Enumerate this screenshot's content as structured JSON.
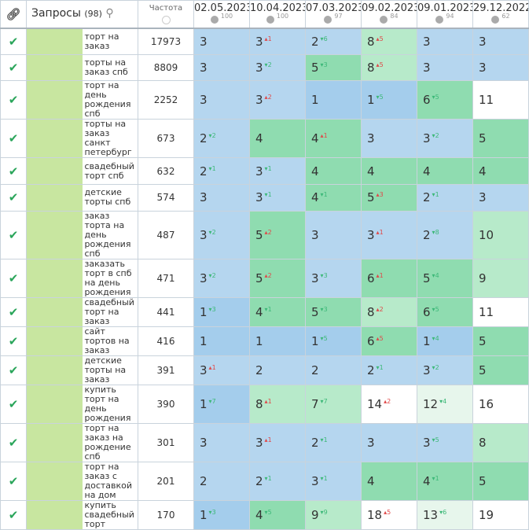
{
  "header": {
    "link_icon": "link-icon",
    "queries_label": "Запросы",
    "queries_count": "(98)",
    "freq_label": "Частота",
    "dates": [
      {
        "date": "02.05.2023",
        "pct": "100"
      },
      {
        "date": "10.04.2023",
        "pct": "100"
      },
      {
        "date": "07.03.2023",
        "pct": "97"
      },
      {
        "date": "09.02.2023",
        "pct": "84"
      },
      {
        "date": "09.01.2023",
        "pct": "94"
      },
      {
        "date": "29.12.2022",
        "pct": "62"
      }
    ]
  },
  "rows": [
    {
      "q": "торт на заказ",
      "f": "17973",
      "c": [
        [
          "3",
          "",
          "",
          "b"
        ],
        [
          "3",
          "1",
          "up",
          "b"
        ],
        [
          "2",
          "6",
          "dn",
          "b"
        ],
        [
          "8",
          "5",
          "up",
          "lg"
        ],
        [
          "3",
          "",
          "",
          "b"
        ],
        [
          "3",
          "",
          "",
          "b"
        ]
      ]
    },
    {
      "q": "торты на заказ спб",
      "f": "8809",
      "c": [
        [
          "3",
          "",
          "",
          "b"
        ],
        [
          "3",
          "2",
          "dn",
          "b"
        ],
        [
          "5",
          "3",
          "dn",
          "g"
        ],
        [
          "8",
          "5",
          "up",
          "lg"
        ],
        [
          "3",
          "",
          "",
          "b"
        ],
        [
          "3",
          "",
          "",
          "b"
        ]
      ]
    },
    {
      "q": "торт на день рождения спб",
      "f": "2252",
      "c": [
        [
          "3",
          "",
          "",
          "b"
        ],
        [
          "3",
          "2",
          "up",
          "b"
        ],
        [
          "1",
          "",
          "",
          "db"
        ],
        [
          "1",
          "5",
          "dn",
          "db"
        ],
        [
          "6",
          "5",
          "dn",
          "g"
        ],
        [
          "11",
          "",
          "",
          "w"
        ]
      ]
    },
    {
      "q": "торты на заказ санкт петербург",
      "f": "673",
      "c": [
        [
          "2",
          "2",
          "dn",
          "b"
        ],
        [
          "4",
          "",
          "",
          "g"
        ],
        [
          "4",
          "1",
          "up",
          "g"
        ],
        [
          "3",
          "",
          "",
          "b"
        ],
        [
          "3",
          "2",
          "dn",
          "b"
        ],
        [
          "5",
          "",
          "",
          "g"
        ]
      ]
    },
    {
      "q": "свадебный торт спб",
      "f": "632",
      "c": [
        [
          "2",
          "1",
          "dn",
          "b"
        ],
        [
          "3",
          "1",
          "dn",
          "b"
        ],
        [
          "4",
          "",
          "",
          "g"
        ],
        [
          "4",
          "",
          "",
          "g"
        ],
        [
          "4",
          "",
          "",
          "g"
        ],
        [
          "4",
          "",
          "",
          "g"
        ]
      ]
    },
    {
      "q": "детские торты спб",
      "f": "574",
      "c": [
        [
          "3",
          "",
          "",
          "b"
        ],
        [
          "3",
          "1",
          "dn",
          "b"
        ],
        [
          "4",
          "1",
          "dn",
          "g"
        ],
        [
          "5",
          "3",
          "up",
          "g"
        ],
        [
          "2",
          "1",
          "dn",
          "b"
        ],
        [
          "3",
          "",
          "",
          "b"
        ]
      ]
    },
    {
      "q": "заказ торта на день рождения спб",
      "f": "487",
      "c": [
        [
          "3",
          "2",
          "dn",
          "b"
        ],
        [
          "5",
          "2",
          "up",
          "g"
        ],
        [
          "3",
          "",
          "",
          "b"
        ],
        [
          "3",
          "1",
          "up",
          "b"
        ],
        [
          "2",
          "8",
          "dn",
          "b"
        ],
        [
          "10",
          "",
          "",
          "lg"
        ]
      ]
    },
    {
      "q": "заказать торт в спб на день рождения",
      "f": "471",
      "c": [
        [
          "3",
          "2",
          "dn",
          "b"
        ],
        [
          "5",
          "2",
          "up",
          "g"
        ],
        [
          "3",
          "3",
          "dn",
          "b"
        ],
        [
          "6",
          "1",
          "up",
          "g"
        ],
        [
          "5",
          "4",
          "dn",
          "g"
        ],
        [
          "9",
          "",
          "",
          "lg"
        ]
      ]
    },
    {
      "q": "свадебный торт на заказ",
      "f": "441",
      "c": [
        [
          "1",
          "3",
          "dn",
          "db"
        ],
        [
          "4",
          "1",
          "dn",
          "g"
        ],
        [
          "5",
          "3",
          "dn",
          "g"
        ],
        [
          "8",
          "2",
          "up",
          "lg"
        ],
        [
          "6",
          "5",
          "dn",
          "g"
        ],
        [
          "11",
          "",
          "",
          "w"
        ]
      ]
    },
    {
      "q": "сайт тортов на заказ",
      "f": "416",
      "c": [
        [
          "1",
          "",
          "",
          "db"
        ],
        [
          "1",
          "",
          "",
          "db"
        ],
        [
          "1",
          "5",
          "dn",
          "db"
        ],
        [
          "6",
          "5",
          "up",
          "g"
        ],
        [
          "1",
          "4",
          "dn",
          "db"
        ],
        [
          "5",
          "",
          "",
          "g"
        ]
      ]
    },
    {
      "q": "детские торты на заказ",
      "f": "391",
      "c": [
        [
          "3",
          "1",
          "up",
          "b"
        ],
        [
          "2",
          "",
          "",
          "b"
        ],
        [
          "2",
          "",
          "",
          "b"
        ],
        [
          "2",
          "1",
          "dn",
          "b"
        ],
        [
          "3",
          "2",
          "dn",
          "b"
        ],
        [
          "5",
          "",
          "",
          "g"
        ]
      ]
    },
    {
      "q": "купить торт на день рождения",
      "f": "390",
      "c": [
        [
          "1",
          "7",
          "dn",
          "db"
        ],
        [
          "8",
          "1",
          "up",
          "lg"
        ],
        [
          "7",
          "7",
          "dn",
          "lg"
        ],
        [
          "14",
          "2",
          "up",
          "w"
        ],
        [
          "12",
          "4",
          "dn",
          "vl"
        ],
        [
          "16",
          "",
          "",
          "w"
        ]
      ]
    },
    {
      "q": "торт на заказ на рождение спб",
      "f": "301",
      "c": [
        [
          "3",
          "",
          "",
          "b"
        ],
        [
          "3",
          "1",
          "up",
          "b"
        ],
        [
          "2",
          "1",
          "dn",
          "b"
        ],
        [
          "3",
          "",
          "",
          "b"
        ],
        [
          "3",
          "5",
          "dn",
          "b"
        ],
        [
          "8",
          "",
          "",
          "lg"
        ]
      ]
    },
    {
      "q": "торт на заказ с доставкой на дом",
      "f": "201",
      "c": [
        [
          "2",
          "",
          "",
          "b"
        ],
        [
          "2",
          "1",
          "dn",
          "b"
        ],
        [
          "3",
          "1",
          "dn",
          "b"
        ],
        [
          "4",
          "",
          "",
          "g"
        ],
        [
          "4",
          "1",
          "dn",
          "g"
        ],
        [
          "5",
          "",
          "",
          "g"
        ]
      ]
    },
    {
      "q": "купить свадебный торт",
      "f": "170",
      "c": [
        [
          "1",
          "3",
          "dn",
          "db"
        ],
        [
          "4",
          "5",
          "dn",
          "g"
        ],
        [
          "9",
          "9",
          "dn",
          "lg"
        ],
        [
          "18",
          "5",
          "up",
          "w"
        ],
        [
          "13",
          "6",
          "dn",
          "vl"
        ],
        [
          "19",
          "",
          "",
          "w"
        ]
      ]
    }
  ]
}
